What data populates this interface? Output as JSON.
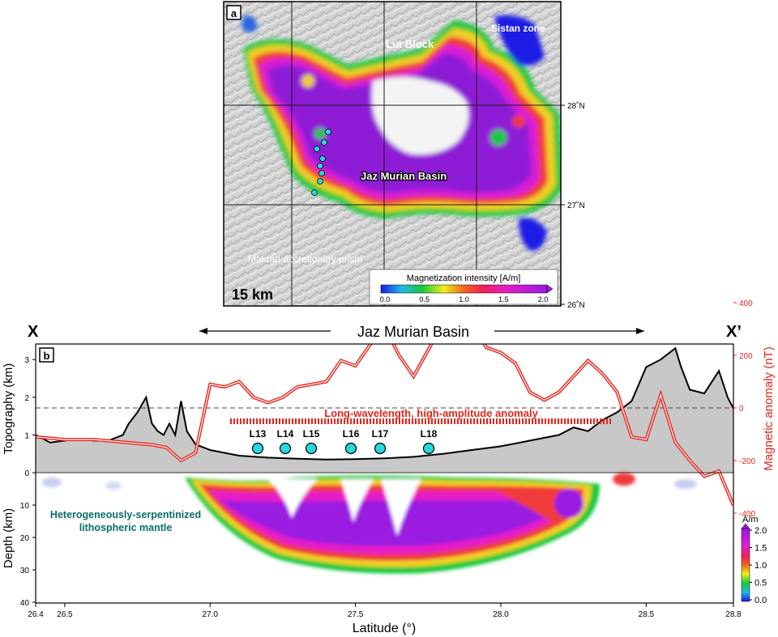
{
  "panel_a": {
    "label": "a",
    "places": [
      "Lut Block",
      "Sistan zone",
      "Jaz Murian Basin",
      "Makran accretionary prism"
    ],
    "lat_ticks": [
      "28˚N",
      "27˚N",
      "26˚N"
    ],
    "scale_text": "15 km",
    "colorbar": {
      "title": "Magnetization intensity [A/m]",
      "ticks": [
        "0.0",
        "0.5",
        "1.0",
        "1.5",
        "2.0"
      ]
    },
    "station_count": 8,
    "colors": {
      "marker": "#29d6dc",
      "hillshade": "#c9c9c9"
    }
  },
  "panel_b": {
    "label": "b",
    "left_end": "X",
    "right_end": "X’",
    "basin_label": "Jaz Murian Basin",
    "anomaly_label": "Long-wavelength, high-amplitude anomaly",
    "mantle_label_line1": "Heterogeneously-serpentinized",
    "mantle_label_line2": "lithospheric mantle",
    "y_left_label": "Topography (km)",
    "y_depth_label": "Depth (km)",
    "y_right_label": "Magnetic anomaly (nT)",
    "x_label": "Latitude (°)",
    "topo_ticks": [
      "3",
      "2",
      "1",
      "0"
    ],
    "depth_ticks": [
      "10",
      "20",
      "30",
      "40"
    ],
    "mag_ticks": [
      "400",
      "200",
      "0",
      "-200",
      "-400"
    ],
    "x_ticks": [
      "26.4",
      "26.5",
      "27.0",
      "27.5",
      "28.0",
      "28.5",
      "28.8"
    ],
    "stations": [
      "L13",
      "L14",
      "L15",
      "L16",
      "L17",
      "L18"
    ],
    "colorbar": {
      "unit": "A/m",
      "ticks": [
        "2.0",
        "1.5",
        "1.0",
        "0.5",
        "0.0"
      ]
    },
    "colors": {
      "anomaly": "#e8231c",
      "topo_fill": "#c8c8c8",
      "mantle_text": "#0a6e68"
    }
  },
  "chart_data": {
    "type": "line",
    "xlabel": "Latitude (°)",
    "ylabel": "Topography (km)",
    "y2label": "Magnetic anomaly (nT)",
    "xlim": [
      26.4,
      28.8
    ],
    "ylim": [
      0,
      3.5
    ],
    "y2lim": [
      -400,
      400
    ],
    "series": [
      {
        "axis": "left",
        "x": [
          26.4,
          26.45,
          26.5,
          26.55,
          26.6,
          26.65,
          26.7,
          26.72,
          26.75,
          26.78,
          26.8,
          26.82,
          26.84,
          26.86,
          26.88,
          26.9,
          26.92,
          26.95,
          27.0,
          27.1,
          27.2,
          27.3,
          27.4,
          27.5,
          27.6,
          27.7,
          27.8,
          27.9,
          28.0,
          28.1,
          28.2,
          28.25,
          28.3,
          28.35,
          28.4,
          28.45,
          28.5,
          28.55,
          28.6,
          28.62,
          28.65,
          28.7,
          28.75,
          28.78,
          28.8
        ],
        "values": [
          1.0,
          0.8,
          0.85,
          0.9,
          0.85,
          0.85,
          1.0,
          1.3,
          1.6,
          2.0,
          1.3,
          1.1,
          1.0,
          1.3,
          1.0,
          1.9,
          1.1,
          0.75,
          0.6,
          0.45,
          0.4,
          0.37,
          0.35,
          0.36,
          0.38,
          0.42,
          0.5,
          0.6,
          0.7,
          0.85,
          1.0,
          1.2,
          1.1,
          1.4,
          1.6,
          1.9,
          2.8,
          3.0,
          3.3,
          2.8,
          2.2,
          2.1,
          2.7,
          2.0,
          1.7
        ]
      },
      {
        "axis": "right",
        "x": [
          26.4,
          26.5,
          26.6,
          26.7,
          26.8,
          26.85,
          26.9,
          26.95,
          27.0,
          27.05,
          27.1,
          27.15,
          27.2,
          27.25,
          27.3,
          27.35,
          27.4,
          27.45,
          27.5,
          27.55,
          27.6,
          27.65,
          27.7,
          27.75,
          27.8,
          27.85,
          27.9,
          27.95,
          28.0,
          28.05,
          28.1,
          28.15,
          28.2,
          28.25,
          28.3,
          28.35,
          28.4,
          28.45,
          28.5,
          28.55,
          28.6,
          28.65,
          28.7,
          28.75,
          28.8
        ],
        "values": [
          -110,
          -120,
          -120,
          -130,
          -140,
          -150,
          -200,
          -170,
          90,
          80,
          100,
          40,
          20,
          40,
          80,
          90,
          100,
          180,
          160,
          240,
          310,
          200,
          120,
          220,
          320,
          400,
          320,
          230,
          210,
          170,
          60,
          30,
          60,
          120,
          180,
          130,
          60,
          -110,
          -120,
          50,
          -130,
          -200,
          -260,
          -240,
          -370
        ]
      }
    ]
  }
}
